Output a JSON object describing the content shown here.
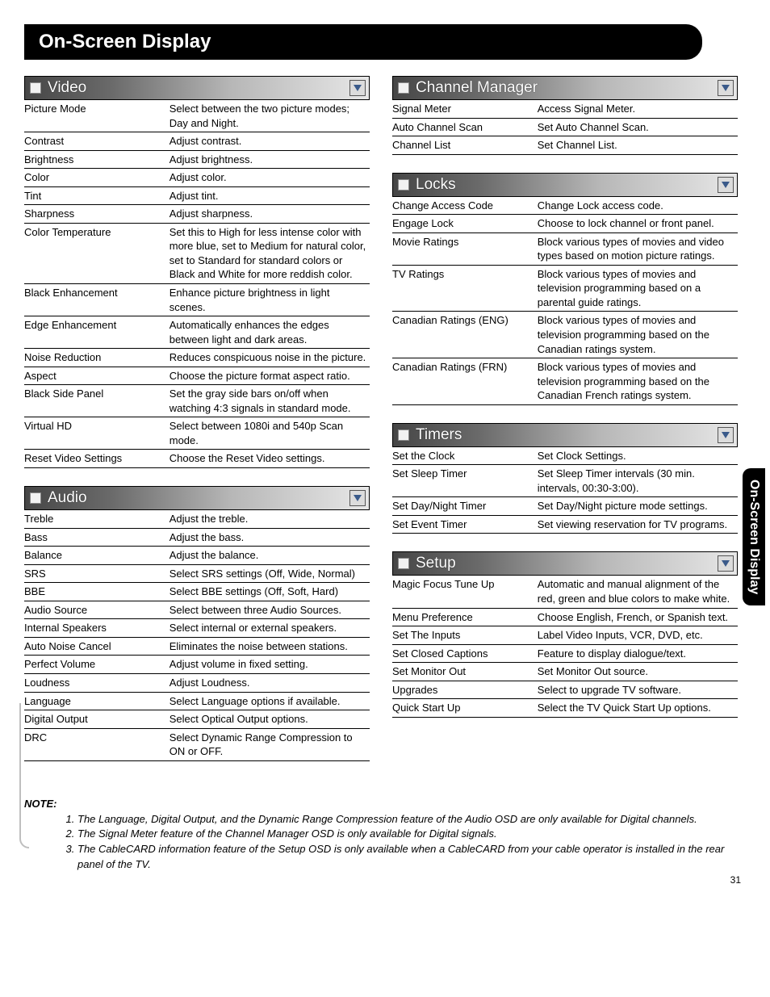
{
  "page_title": "On-Screen Display",
  "side_tab": "On-Screen Display",
  "page_number": "31",
  "sections": {
    "video": {
      "title": "Video",
      "rows": [
        {
          "label": "Picture Mode",
          "desc": "Select between the two picture modes; Day and Night."
        },
        {
          "label": "Contrast",
          "desc": "Adjust contrast."
        },
        {
          "label": "Brightness",
          "desc": "Adjust brightness."
        },
        {
          "label": "Color",
          "desc": "Adjust color."
        },
        {
          "label": "Tint",
          "desc": "Adjust tint."
        },
        {
          "label": "Sharpness",
          "desc": "Adjust sharpness."
        },
        {
          "label": "Color Temperature",
          "desc": "Set this to High for less intense color with more blue, set to Medium for natural color, set to Standard for standard colors or Black and White for more reddish color."
        },
        {
          "label": "Black Enhancement",
          "desc": "Enhance picture brightness in light scenes."
        },
        {
          "label": "Edge Enhancement",
          "desc": "Automatically enhances the edges between light and dark areas."
        },
        {
          "label": "Noise Reduction",
          "desc": "Reduces conspicuous noise in the picture."
        },
        {
          "label": "Aspect",
          "desc": "Choose the picture format aspect ratio."
        },
        {
          "label": "Black Side Panel",
          "desc": "Set the gray side bars on/off when watching 4:3 signals in standard mode."
        },
        {
          "label": "Virtual HD",
          "desc": "Select between 1080i and 540p Scan mode."
        },
        {
          "label": "Reset Video Settings",
          "desc": "Choose the Reset Video settings."
        }
      ]
    },
    "audio": {
      "title": "Audio",
      "rows": [
        {
          "label": "Treble",
          "desc": "Adjust the treble."
        },
        {
          "label": "Bass",
          "desc": "Adjust the bass."
        },
        {
          "label": "Balance",
          "desc": "Adjust the balance."
        },
        {
          "label": "SRS",
          "desc": "Select SRS settings (Off, Wide, Normal)"
        },
        {
          "label": "BBE",
          "desc": "Select BBE settings (Off, Soft, Hard)"
        },
        {
          "label": "Audio Source",
          "desc": "Select between three Audio Sources."
        },
        {
          "label": "Internal Speakers",
          "desc": "Select internal or external speakers."
        },
        {
          "label": "Auto Noise Cancel",
          "desc": "Eliminates the noise between stations."
        },
        {
          "label": "Perfect Volume",
          "desc": "Adjust volume in fixed setting."
        },
        {
          "label": "Loudness",
          "desc": "Adjust Loudness."
        },
        {
          "label": "Language",
          "desc": "Select Language options if available."
        },
        {
          "label": "Digital Output",
          "desc": "Select Optical Output options."
        },
        {
          "label": "DRC",
          "desc": "Select Dynamic Range Compression to ON or OFF."
        }
      ]
    },
    "channel_manager": {
      "title": "Channel Manager",
      "rows": [
        {
          "label": "Signal Meter",
          "desc": "Access Signal Meter."
        },
        {
          "label": "Auto Channel Scan",
          "desc": "Set Auto Channel Scan."
        },
        {
          "label": "Channel List",
          "desc": "Set Channel List."
        }
      ]
    },
    "locks": {
      "title": "Locks",
      "rows": [
        {
          "label": "Change Access Code",
          "desc": "Change Lock access code."
        },
        {
          "label": "Engage Lock",
          "desc": "Choose to lock channel or front panel."
        },
        {
          "label": "Movie Ratings",
          "desc": "Block various types of movies and video types based on motion picture ratings."
        },
        {
          "label": "TV Ratings",
          "desc": "Block various types of movies and television programming based on a parental guide ratings."
        },
        {
          "label": "Canadian Ratings (ENG)",
          "desc": "Block various types of movies and television programming based on the Canadian ratings system."
        },
        {
          "label": "Canadian Ratings (FRN)",
          "desc": "Block various types of movies and television programming based on the Canadian French ratings system."
        }
      ]
    },
    "timers": {
      "title": "Timers",
      "rows": [
        {
          "label": "Set the Clock",
          "desc": "Set Clock Settings."
        },
        {
          "label": "Set Sleep Timer",
          "desc": "Set Sleep Timer intervals (30 min. intervals, 00:30-3:00)."
        },
        {
          "label": "Set Day/Night Timer",
          "desc": "Set Day/Night picture mode settings."
        },
        {
          "label": "Set Event Timer",
          "desc": "Set viewing reservation for TV programs."
        }
      ]
    },
    "setup": {
      "title": "Setup",
      "rows": [
        {
          "label": "Magic Focus Tune Up",
          "desc": "Automatic and manual alignment of the red, green and blue colors to make white."
        },
        {
          "label": "Menu Preference",
          "desc": "Choose English, French, or Spanish text."
        },
        {
          "label": "Set The Inputs",
          "desc": "Label Video Inputs, VCR, DVD, etc."
        },
        {
          "label": "Set Closed Captions",
          "desc": "Feature to display dialogue/text."
        },
        {
          "label": "Set Monitor Out",
          "desc": "Set Monitor Out source."
        },
        {
          "label": "Upgrades",
          "desc": "Select to upgrade TV software."
        },
        {
          "label": "Quick Start Up",
          "desc": "Select the TV Quick Start Up options."
        }
      ]
    }
  },
  "notes_label": "NOTE:",
  "notes": [
    "The Language, Digital Output, and the Dynamic Range Compression feature of the Audio OSD are only available for Digital channels.",
    "The Signal Meter feature of the Channel Manager OSD is only available for Digital signals.",
    "The CableCARD information feature of the Setup OSD is only available when a CableCARD from your cable operator is installed in the rear panel of the TV."
  ]
}
